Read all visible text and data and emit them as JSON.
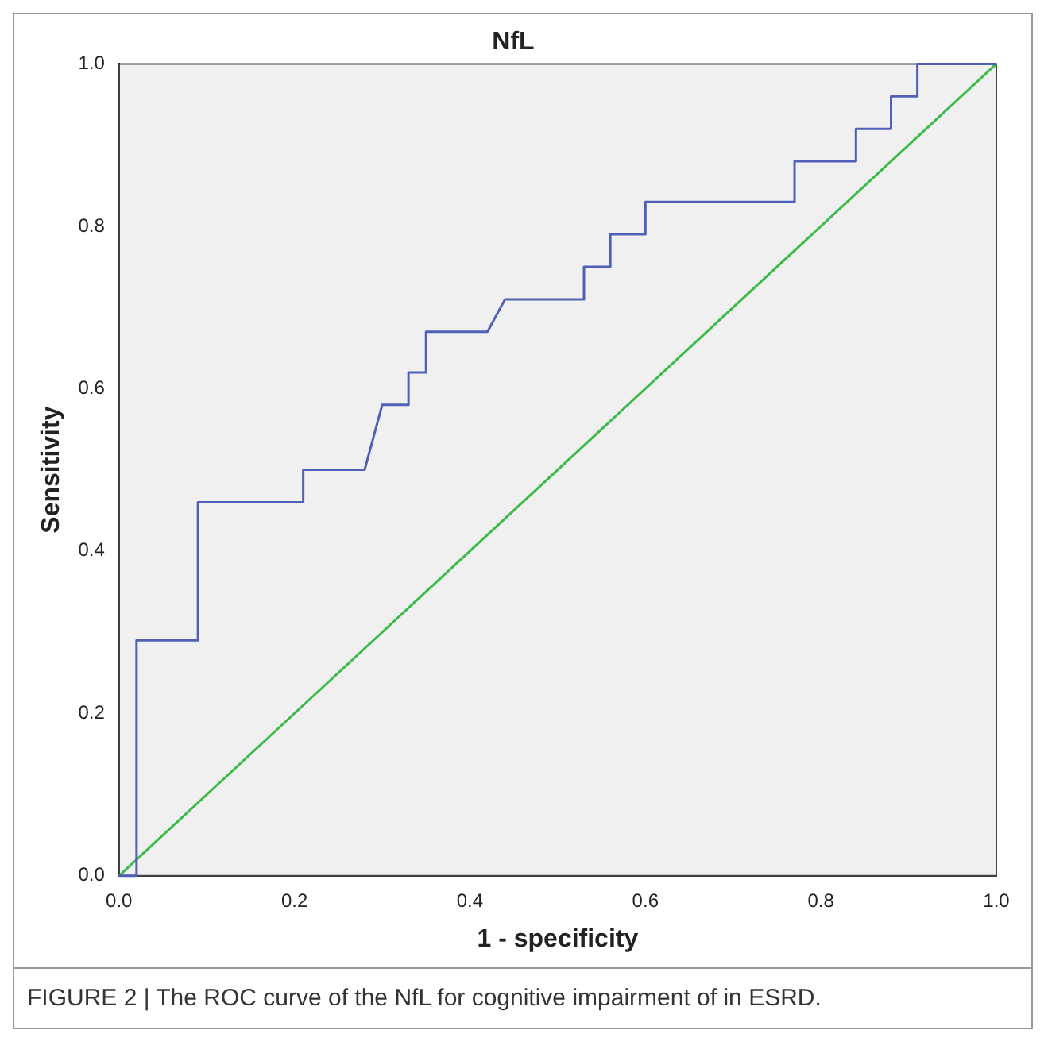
{
  "chart_data": {
    "type": "line",
    "title": "NfL",
    "xlabel": "1 - specificity",
    "ylabel": "Sensitivity",
    "series": [
      {
        "color": "#5060b8",
        "x": [
          0,
          0.02,
          0.02,
          0.09,
          0.09,
          0.21,
          0.21,
          0.28,
          0.3,
          0.33,
          0.33,
          0.35,
          0.35,
          0.42,
          0.44,
          0.53,
          0.53,
          0.56,
          0.56,
          0.6,
          0.6,
          0.77,
          0.77,
          0.84,
          0.84,
          0.88,
          0.88,
          0.91,
          0.91,
          1
        ],
        "values": [
          0,
          0,
          0.29,
          0.29,
          0.46,
          0.46,
          0.5,
          0.5,
          0.58,
          0.58,
          0.62,
          0.62,
          0.67,
          0.67,
          0.71,
          0.71,
          0.75,
          0.75,
          0.79,
          0.79,
          0.83,
          0.83,
          0.88,
          0.88,
          0.92,
          0.92,
          0.96,
          0.96,
          1,
          1
        ]
      },
      {
        "color": "#3cba4a",
        "x": [
          0,
          1
        ],
        "values": [
          0,
          1
        ]
      }
    ],
    "xlim": [
      0,
      1
    ],
    "ylim": [
      0,
      1
    ],
    "xticks": [
      {
        "value": 0,
        "label": "0.0"
      },
      {
        "value": 0.2,
        "label": "0.2"
      },
      {
        "value": 0.4,
        "label": "0.4"
      },
      {
        "value": 0.6,
        "label": "0.6"
      },
      {
        "value": 0.8,
        "label": "0.8"
      },
      {
        "value": 1,
        "label": "1.0"
      }
    ],
    "yticks": [
      {
        "value": 0,
        "label": "0.0"
      },
      {
        "value": 0.2,
        "label": "0.2"
      },
      {
        "value": 0.4,
        "label": "0.4"
      },
      {
        "value": 0.6,
        "label": "0.6"
      },
      {
        "value": 0.8,
        "label": "0.8"
      },
      {
        "value": 1,
        "label": "1.0"
      }
    ],
    "grid": false,
    "legend": false,
    "marker": "none",
    "line_style": "solid",
    "annotations": [
      "FIGURE 2 | The ROC curve of the NfL for cognitive impairment of in ESRD."
    ]
  }
}
